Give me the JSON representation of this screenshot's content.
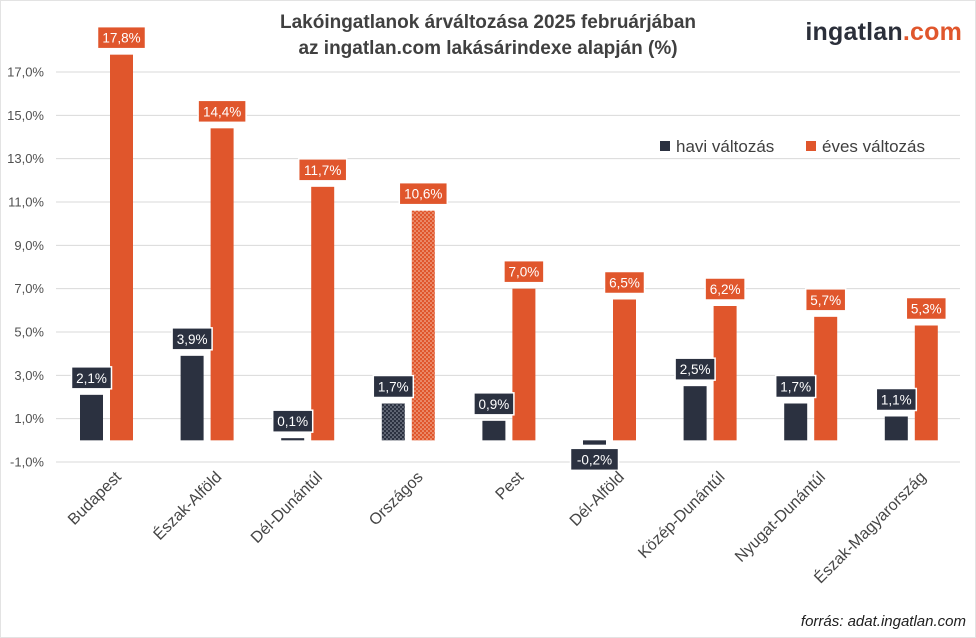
{
  "title_lines": [
    "Lakóingatlanok árváltozása 2025 februárjában",
    "az ingatlan.com lakásárindexe alapján (%)"
  ],
  "logo": {
    "main": "ingatlan",
    "suffix": ".com"
  },
  "source": "forrás: adat.ingatlan.com",
  "colors": {
    "havi": "#2b3140",
    "eves": "#e0562c",
    "label_havi": "#2b3140",
    "label_eves": "#e0562c"
  },
  "chart_data": {
    "type": "bar",
    "categories": [
      "Budapest",
      "Észak-Alföld",
      "Dél-Dunántúl",
      "Országos",
      "Pest",
      "Dél-Alföld",
      "Közép-Dunántúl",
      "Nyugat-Dunántúl",
      "Észak-Magyarország"
    ],
    "series": [
      {
        "name": "havi változás",
        "values": [
          2.1,
          3.9,
          0.1,
          1.7,
          0.9,
          -0.2,
          2.5,
          1.7,
          1.1
        ],
        "labels": [
          "2,1%",
          "3,9%",
          "0,1%",
          "1,7%",
          "0,9%",
          "-0,2%",
          "2,5%",
          "1,7%",
          "1,1%"
        ]
      },
      {
        "name": "éves változás",
        "values": [
          17.8,
          14.4,
          11.7,
          10.6,
          7.0,
          6.5,
          6.2,
          5.7,
          5.3
        ],
        "labels": [
          "17,8%",
          "14,4%",
          "11,7%",
          "10,6%",
          "7,0%",
          "6,5%",
          "6,2%",
          "5,7%",
          "5,3%"
        ]
      }
    ],
    "highlighted_category": "Országos",
    "y_ticks": [
      -1,
      1,
      3,
      5,
      7,
      9,
      11,
      13,
      15,
      17
    ],
    "y_tick_labels": [
      "-1,0%",
      "1,0%",
      "3,0%",
      "5,0%",
      "7,0%",
      "9,0%",
      "11,0%",
      "13,0%",
      "15,0%",
      "17,0%"
    ],
    "ylim": [
      -1,
      17
    ],
    "grid": true,
    "legend_position": "upper-right"
  }
}
